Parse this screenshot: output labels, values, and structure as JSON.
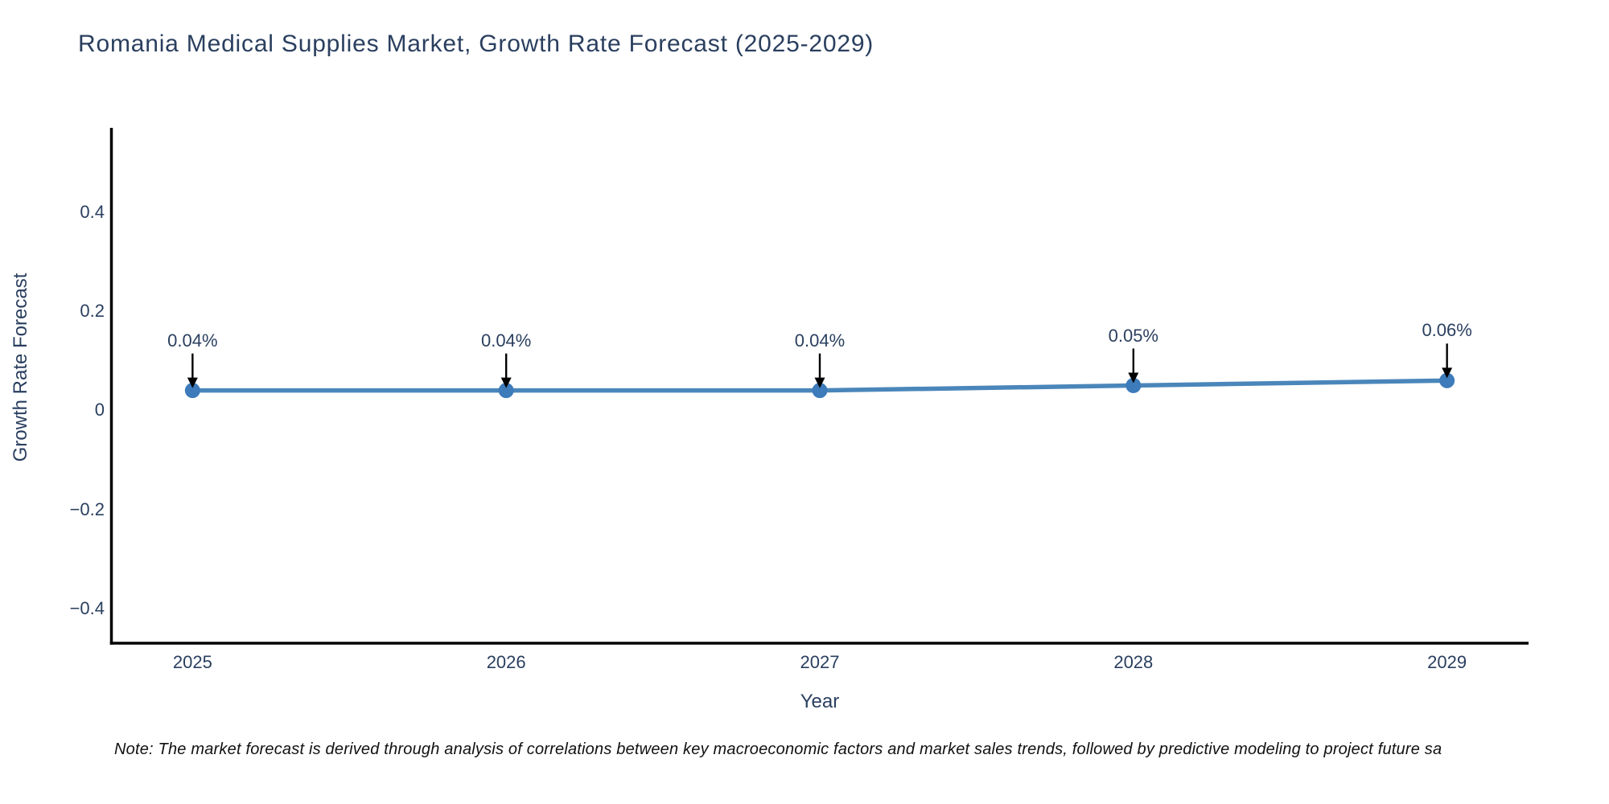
{
  "note": "Note: The market forecast is derived through analysis of correlations between key macroeconomic factors and market sales trends, followed by predictive modeling to project future sa",
  "chart_data": {
    "type": "line",
    "title": "Romania Medical Supplies Market, Growth Rate Forecast (2025-2029)",
    "xlabel": "Year",
    "ylabel": "Growth Rate Forecast",
    "x": [
      2025,
      2026,
      2027,
      2028,
      2029
    ],
    "series": [
      {
        "name": "Growth Rate Forecast",
        "values": [
          0.04,
          0.04,
          0.04,
          0.05,
          0.06
        ]
      }
    ],
    "point_labels": [
      "0.04%",
      "0.04%",
      "0.04%",
      "0.05%",
      "0.06%"
    ],
    "xticks": {
      "values": [
        2025,
        2026,
        2027,
        2028,
        2029
      ],
      "labels": [
        "2025",
        "2026",
        "2027",
        "2028",
        "2029"
      ]
    },
    "yticks": {
      "values": [
        0.4,
        0.2,
        0,
        -0.2,
        -0.4
      ],
      "labels": [
        "0.4",
        "0.2",
        "0",
        "−0.2",
        "−0.4"
      ]
    },
    "xlim": [
      2024.74,
      2029.26
    ],
    "ylim": [
      -0.47,
      0.57
    ],
    "grid": false,
    "legend_position": "none",
    "colors": {
      "line": "#4a86ba",
      "marker": "#3d7bba",
      "axis": "#000000",
      "text": "#2a3f5f",
      "arrow": "#000000",
      "background": "#ffffff"
    }
  }
}
